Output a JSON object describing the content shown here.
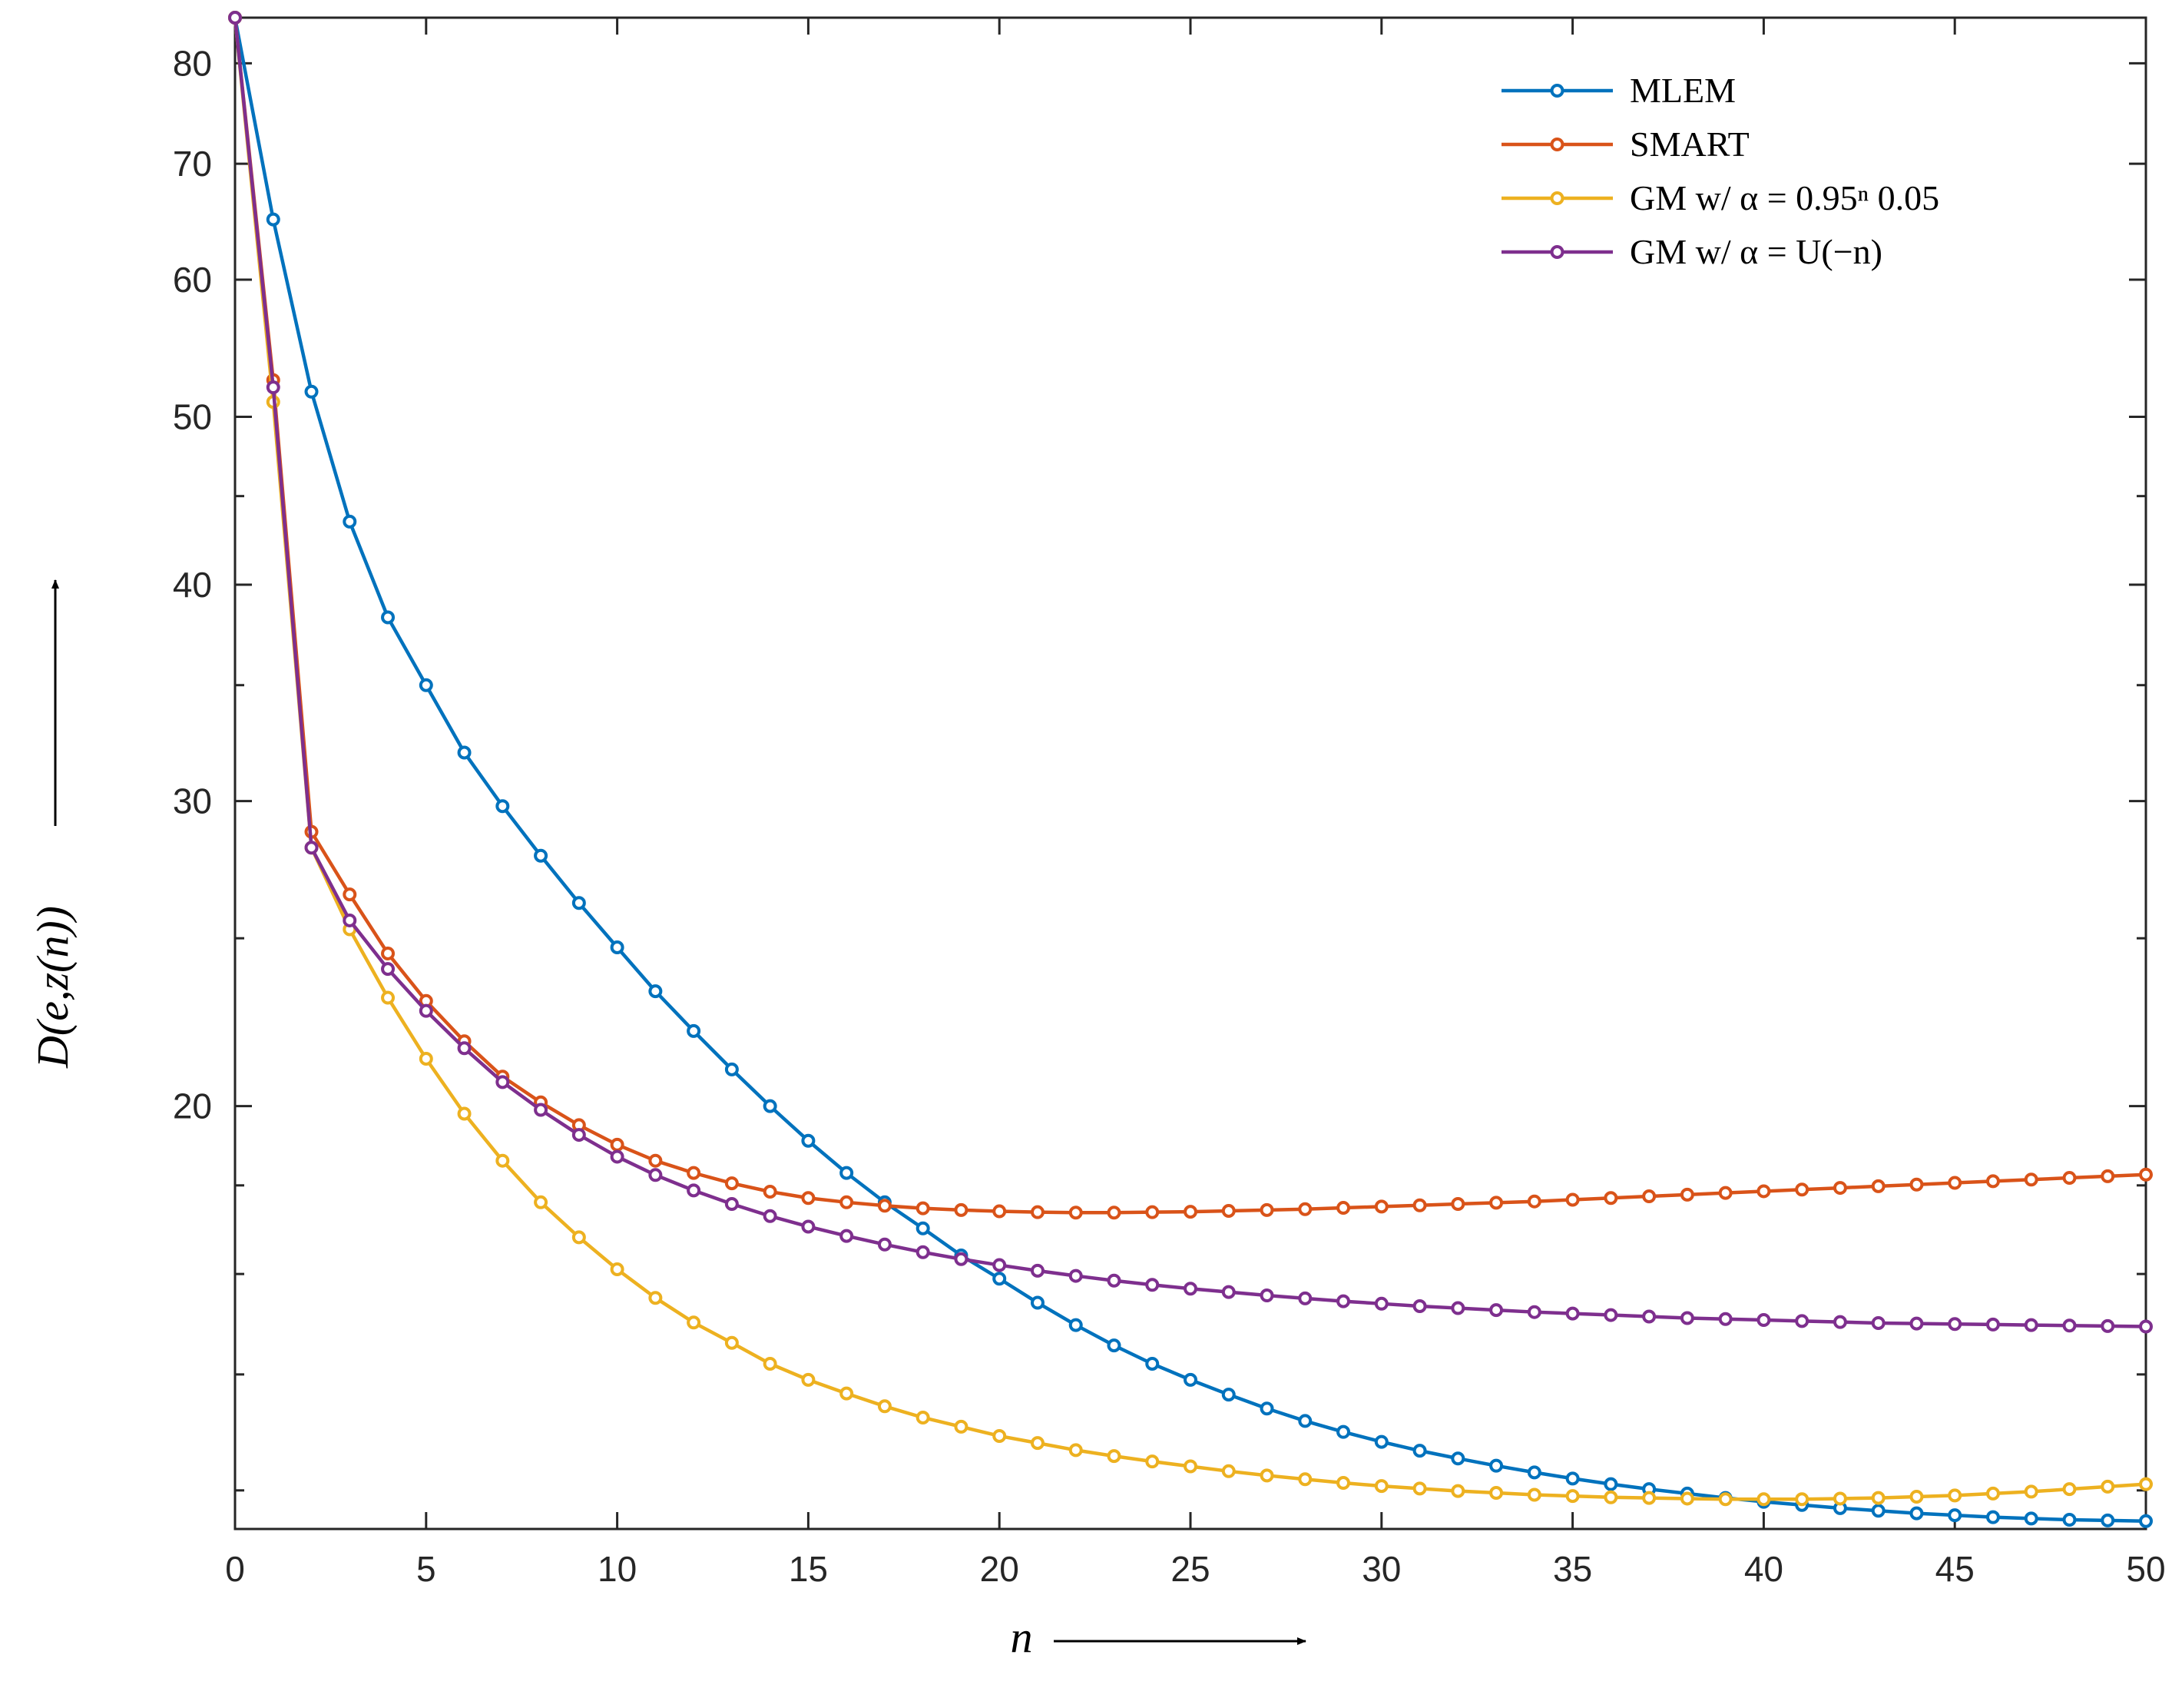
{
  "chart_data": {
    "type": "line",
    "title": "",
    "xlabel": "n",
    "ylabel": "D(e,z(n))",
    "xlim": [
      0,
      50
    ],
    "ylim": [
      11.4,
      85
    ],
    "yscale": "log",
    "grid": false,
    "legend_position": "top-right",
    "x_ticks": [
      0,
      5,
      10,
      15,
      20,
      25,
      30,
      35,
      40,
      45,
      50
    ],
    "x_tick_labels": [
      "0",
      "5",
      "10",
      "15",
      "20",
      "25",
      "30",
      "35",
      "40",
      "45",
      "50"
    ],
    "y_ticks": [
      20,
      30,
      40,
      50,
      60,
      70,
      80
    ],
    "y_tick_labels": [
      "20",
      "30",
      "40",
      "50",
      "60",
      "70",
      "80"
    ],
    "y_minor_ticks": [
      12,
      14,
      16,
      18,
      25,
      35,
      45
    ],
    "x": [
      0,
      1,
      2,
      3,
      4,
      5,
      6,
      7,
      8,
      9,
      10,
      11,
      12,
      13,
      14,
      15,
      16,
      17,
      18,
      19,
      20,
      21,
      22,
      23,
      24,
      25,
      26,
      27,
      28,
      29,
      30,
      31,
      32,
      33,
      34,
      35,
      36,
      37,
      38,
      39,
      40,
      41,
      42,
      43,
      44,
      45,
      46,
      47,
      48,
      49,
      50
    ],
    "series": [
      {
        "name": "MLEM",
        "legend_label": "MLEM",
        "color": "#0072BD",
        "values": [
          85.0,
          65.0,
          51.7,
          43.5,
          38.3,
          35.0,
          32.0,
          29.8,
          27.9,
          26.2,
          24.7,
          23.3,
          22.1,
          21.0,
          20.0,
          19.1,
          18.3,
          17.6,
          17.0,
          16.4,
          15.9,
          15.4,
          14.95,
          14.55,
          14.2,
          13.9,
          13.63,
          13.38,
          13.16,
          12.97,
          12.8,
          12.65,
          12.52,
          12.4,
          12.29,
          12.19,
          12.1,
          12.02,
          11.95,
          11.88,
          11.82,
          11.77,
          11.72,
          11.68,
          11.64,
          11.61,
          11.58,
          11.56,
          11.54,
          11.53,
          11.52
        ]
      },
      {
        "name": "SMART",
        "legend_label": "SMART",
        "color": "#D95319",
        "values": [
          85.0,
          52.5,
          28.8,
          26.5,
          24.5,
          23.0,
          21.8,
          20.8,
          20.1,
          19.5,
          19.0,
          18.6,
          18.3,
          18.05,
          17.85,
          17.7,
          17.6,
          17.52,
          17.46,
          17.42,
          17.39,
          17.37,
          17.36,
          17.36,
          17.37,
          17.38,
          17.4,
          17.42,
          17.44,
          17.47,
          17.5,
          17.53,
          17.56,
          17.59,
          17.62,
          17.66,
          17.7,
          17.74,
          17.78,
          17.82,
          17.86,
          17.9,
          17.94,
          17.98,
          18.02,
          18.06,
          18.1,
          18.14,
          18.18,
          18.22,
          18.26
        ]
      },
      {
        "name": "GM w/ α = 0.95^n 0.05",
        "legend_label": "GM w/ α = 0.95ⁿ 0.05",
        "color": "#EDB120",
        "values": [
          85.0,
          51.0,
          28.2,
          25.3,
          23.1,
          21.3,
          19.8,
          18.6,
          17.6,
          16.8,
          16.1,
          15.5,
          15.0,
          14.6,
          14.2,
          13.9,
          13.65,
          13.42,
          13.22,
          13.06,
          12.9,
          12.78,
          12.66,
          12.56,
          12.47,
          12.39,
          12.31,
          12.24,
          12.18,
          12.12,
          12.07,
          12.03,
          11.99,
          11.96,
          11.93,
          11.91,
          11.89,
          11.88,
          11.87,
          11.86,
          11.86,
          11.86,
          11.87,
          11.88,
          11.9,
          11.92,
          11.95,
          11.98,
          12.02,
          12.06,
          12.1
        ]
      },
      {
        "name": "GM w/ α = U(−n)",
        "legend_label": "GM w/ α = U(−n)",
        "color": "#7E2F8E",
        "values": [
          85.0,
          52.0,
          28.2,
          25.6,
          24.0,
          22.7,
          21.6,
          20.65,
          19.9,
          19.25,
          18.7,
          18.25,
          17.88,
          17.56,
          17.28,
          17.04,
          16.83,
          16.64,
          16.47,
          16.32,
          16.19,
          16.07,
          15.96,
          15.86,
          15.77,
          15.69,
          15.62,
          15.55,
          15.49,
          15.43,
          15.38,
          15.33,
          15.29,
          15.25,
          15.21,
          15.18,
          15.15,
          15.12,
          15.09,
          15.07,
          15.05,
          15.03,
          15.01,
          14.99,
          14.98,
          14.97,
          14.96,
          14.95,
          14.94,
          14.93,
          14.92
        ]
      }
    ]
  }
}
